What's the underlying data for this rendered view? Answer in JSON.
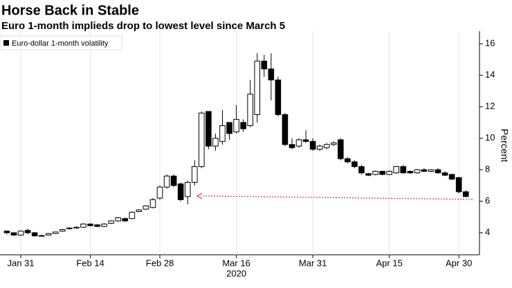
{
  "chart_data": {
    "type": "candlestick",
    "title": "Horse Back in Stable",
    "subtitle": "Euro 1-month implieds drop to lowest level since March 5",
    "y_axis_label": "Percent",
    "year_label": "2020",
    "categories": [
      null,
      null,
      "Jan 31",
      null,
      null,
      null,
      null,
      null,
      null,
      null,
      null,
      null,
      "Feb 14",
      null,
      null,
      null,
      null,
      null,
      null,
      null,
      null,
      null,
      "Feb 28",
      null,
      null,
      null,
      null,
      null,
      null,
      null,
      null,
      null,
      null,
      "Mar 16",
      null,
      null,
      null,
      null,
      null,
      null,
      null,
      null,
      null,
      null,
      "Mar 31",
      null,
      null,
      null,
      null,
      null,
      null,
      null,
      null,
      null,
      null,
      "Apr 15",
      null,
      null,
      null,
      null,
      null,
      null,
      null,
      null,
      null,
      "Apr 30",
      null
    ],
    "series": [
      {
        "name": "Euro-dollar 1-month volatility",
        "color": "#000000",
        "open": [
          4.1,
          4.0,
          3.85,
          4.15,
          4.0,
          3.8,
          3.85,
          3.95,
          4.1,
          4.25,
          4.3,
          4.35,
          4.55,
          4.5,
          4.4,
          4.6,
          4.75,
          4.9,
          4.9,
          5.35,
          5.5,
          5.6,
          6.2,
          6.9,
          7.6,
          7.1,
          6.3,
          7.2,
          8.2,
          11.7,
          9.5,
          9.8,
          11.0,
          10.4,
          11.0,
          10.8,
          11.5,
          14.9,
          14.4,
          13.7,
          11.5,
          9.6,
          9.5,
          9.9,
          9.8,
          9.3,
          9.4,
          9.6,
          9.9,
          8.7,
          8.5,
          8.2,
          7.75,
          7.7,
          7.9,
          7.7,
          7.8,
          8.2,
          7.9,
          7.8,
          8.0,
          7.9,
          8.0,
          7.8,
          7.7,
          7.5,
          6.6
        ],
        "high": [
          4.15,
          4.0,
          4.15,
          4.25,
          4.05,
          3.88,
          3.98,
          4.08,
          4.25,
          4.35,
          4.4,
          4.6,
          4.6,
          4.55,
          4.6,
          4.8,
          5.0,
          4.95,
          5.35,
          5.5,
          5.75,
          6.2,
          7.0,
          7.7,
          7.7,
          7.2,
          7.3,
          8.6,
          11.7,
          11.7,
          10.3,
          11.8,
          11.0,
          12.1,
          11.2,
          13.7,
          15.4,
          15.3,
          15.4,
          13.9,
          11.6,
          10.0,
          10.0,
          10.5,
          10.0,
          9.6,
          9.7,
          9.8,
          10.0,
          8.8,
          8.6,
          8.3,
          7.8,
          7.95,
          7.95,
          7.95,
          8.25,
          8.3,
          7.95,
          8.05,
          8.1,
          8.05,
          8.1,
          7.9,
          7.75,
          7.55,
          6.7
        ],
        "low": [
          3.9,
          3.8,
          3.8,
          3.9,
          3.75,
          3.78,
          3.82,
          3.92,
          4.05,
          4.2,
          4.25,
          4.3,
          4.4,
          4.35,
          4.35,
          4.55,
          4.7,
          4.7,
          4.85,
          5.3,
          5.45,
          5.55,
          6.1,
          6.8,
          6.9,
          6.0,
          5.8,
          7.0,
          8.1,
          9.3,
          9.2,
          9.6,
          9.9,
          10.3,
          10.4,
          10.7,
          11.0,
          13.9,
          12.4,
          11.4,
          9.5,
          9.3,
          9.4,
          9.7,
          9.2,
          9.2,
          9.3,
          9.5,
          8.6,
          8.4,
          8.1,
          7.7,
          7.6,
          7.65,
          7.65,
          7.65,
          7.75,
          7.75,
          7.75,
          7.75,
          7.85,
          7.85,
          7.75,
          7.6,
          7.35,
          6.5,
          6.25
        ],
        "close": [
          4.0,
          3.85,
          4.1,
          4.0,
          3.8,
          3.82,
          3.95,
          4.05,
          4.2,
          4.3,
          4.35,
          4.55,
          4.45,
          4.4,
          4.55,
          4.75,
          4.95,
          4.75,
          5.3,
          5.45,
          5.7,
          6.1,
          6.9,
          7.6,
          7.0,
          6.1,
          7.2,
          8.2,
          11.6,
          9.5,
          10.0,
          10.8,
          10.3,
          11.2,
          10.6,
          12.8,
          14.9,
          14.4,
          13.7,
          11.5,
          9.6,
          9.4,
          9.9,
          9.8,
          9.3,
          9.5,
          9.6,
          9.7,
          8.7,
          8.5,
          8.2,
          7.8,
          7.65,
          7.9,
          7.7,
          7.9,
          8.2,
          7.8,
          7.8,
          8.0,
          7.9,
          8.0,
          7.8,
          7.65,
          7.4,
          6.6,
          6.3
        ]
      }
    ],
    "ylim": [
      2.6,
      16.8
    ],
    "yticks": [
      4,
      6,
      8,
      10,
      12,
      14,
      16
    ],
    "grid": "x",
    "legend": "top-left"
  }
}
